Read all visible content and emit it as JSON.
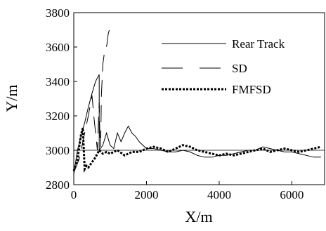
{
  "chart_data": {
    "type": "line",
    "title": "",
    "xlabel": "X/m",
    "ylabel": "Y/m",
    "xlim": [
      0,
      6900
    ],
    "ylim": [
      2800,
      3800
    ],
    "xticks": [
      0,
      2000,
      4000,
      6000
    ],
    "yticks": [
      2800,
      3000,
      3200,
      3400,
      3600,
      3800
    ],
    "xtick_labels": [
      "0",
      "2000",
      "4000",
      "6000"
    ],
    "ytick_labels": [
      "2800",
      "3000",
      "3200",
      "3400",
      "3600",
      "3800"
    ],
    "legend_position": "top-right",
    "grid": false,
    "series": [
      {
        "name": "Rear Track",
        "style": "solid",
        "color": "#000000",
        "x": [
          0,
          100,
          200,
          300,
          400,
          500,
          600,
          700,
          700,
          800,
          900,
          1000,
          1100,
          1200,
          1300,
          1400,
          1500,
          1600,
          1700,
          1800,
          1900,
          2000,
          2200,
          2400,
          2600,
          2800,
          3000,
          3200,
          3400,
          3600,
          3800,
          4000,
          4200,
          4400,
          4600,
          4800,
          5000,
          5200,
          5400,
          5600,
          5800,
          6000,
          6200,
          6400,
          6600,
          6800
        ],
        "y": [
          2860,
          3000,
          3080,
          3160,
          3250,
          3330,
          3400,
          3440,
          3000,
          3030,
          3100,
          3030,
          3010,
          3100,
          3050,
          3100,
          3140,
          3100,
          3080,
          3050,
          3030,
          3010,
          3010,
          3000,
          2990,
          2990,
          3000,
          2990,
          2970,
          2960,
          2960,
          2970,
          2970,
          2980,
          2990,
          3000,
          3000,
          3020,
          3010,
          3000,
          2990,
          2990,
          2980,
          2970,
          2960,
          2960
        ]
      },
      {
        "name": "SD",
        "style": "dashed",
        "color": "#000000",
        "x": [
          0,
          150,
          300,
          400,
          500,
          550,
          650,
          700,
          720,
          740,
          760,
          800,
          850,
          900,
          950,
          980
        ],
        "y": [
          2870,
          2950,
          3100,
          3200,
          3320,
          3200,
          3000,
          3280,
          3050,
          3020,
          3320,
          3500,
          3580,
          3600,
          3680,
          3700
        ]
      },
      {
        "name": "FMFSD",
        "style": "dotted",
        "color": "#000000",
        "x": [
          0,
          100,
          150,
          200,
          250,
          300,
          350,
          400,
          500,
          600,
          700,
          800,
          900,
          1000,
          1200,
          1400,
          1600,
          1800,
          2000,
          2200,
          2400,
          2600,
          2800,
          3000,
          3200,
          3400,
          3600,
          3800,
          4000,
          4200,
          4400,
          4600,
          4800,
          5000,
          5200,
          5400,
          5600,
          5800,
          6000,
          6200,
          6400,
          6600,
          6800
        ],
        "y": [
          2880,
          2940,
          3020,
          3090,
          3130,
          2890,
          2910,
          2900,
          2930,
          2960,
          3000,
          2980,
          2990,
          2980,
          3000,
          2970,
          2990,
          2990,
          3010,
          3020,
          3010,
          2990,
          3010,
          3030,
          3020,
          3000,
          2990,
          2980,
          2970,
          2980,
          2970,
          2980,
          2990,
          3000,
          3010,
          2990,
          3000,
          3010,
          3000,
          2990,
          3000,
          3010,
          3020
        ]
      }
    ]
  }
}
